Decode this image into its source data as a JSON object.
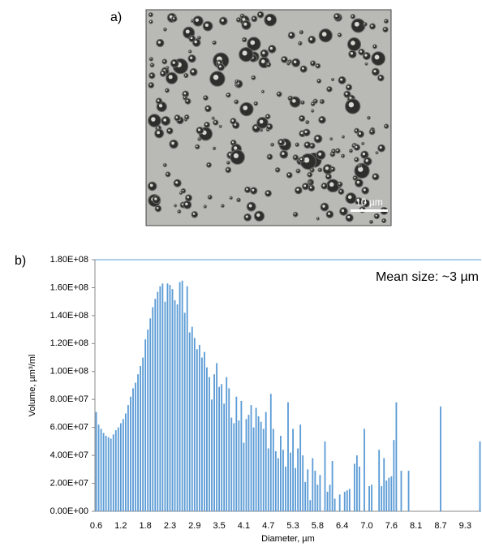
{
  "image": {
    "label": "a)",
    "scale_bar": "10 µm"
  },
  "chart_data": {
    "type": "bar",
    "panel_label": "b)",
    "annotation": "Mean size: ~3 µm",
    "x_label": "Diameter, µm",
    "y_label": "Volume, µm³/ml",
    "color": "#5b9bd5",
    "grid": false,
    "ylim": [
      0,
      180000000
    ],
    "yticks": [
      {
        "value": 0,
        "label": "0.00E+00"
      },
      {
        "value": 20000000,
        "label": "2.00E+07"
      },
      {
        "value": 40000000,
        "label": "4.00E+07"
      },
      {
        "value": 60000000,
        "label": "6.00E+07"
      },
      {
        "value": 80000000,
        "label": "8.00E+07"
      },
      {
        "value": 100000000,
        "label": "1.00E+08"
      },
      {
        "value": 120000000,
        "label": "1.20E+08"
      },
      {
        "value": 140000000,
        "label": "1.40E+08"
      },
      {
        "value": 160000000,
        "label": "1.60E+08"
      },
      {
        "value": 180000000,
        "label": "1.80E+08"
      }
    ],
    "categories": [
      "0.6",
      null,
      null,
      null,
      null,
      null,
      null,
      null,
      null,
      null,
      "1.2",
      null,
      null,
      null,
      null,
      null,
      null,
      null,
      null,
      null,
      "1.8",
      null,
      null,
      null,
      null,
      null,
      null,
      null,
      null,
      null,
      "2.3",
      null,
      null,
      null,
      null,
      null,
      null,
      null,
      null,
      null,
      "2.9",
      null,
      null,
      null,
      null,
      null,
      null,
      null,
      null,
      null,
      "3.5",
      null,
      null,
      null,
      null,
      null,
      null,
      null,
      null,
      null,
      "4.1",
      null,
      null,
      null,
      null,
      null,
      null,
      null,
      null,
      null,
      "4.7",
      null,
      null,
      null,
      null,
      null,
      null,
      null,
      null,
      null,
      "5.3",
      null,
      null,
      null,
      null,
      null,
      null,
      null,
      null,
      null,
      "5.8",
      null,
      null,
      null,
      null,
      null,
      null,
      null,
      null,
      null,
      "6.4",
      null,
      null,
      null,
      null,
      null,
      null,
      null,
      null,
      null,
      "7.0",
      null,
      null,
      null,
      null,
      null,
      null,
      null,
      null,
      null,
      "7.6",
      null,
      null,
      null,
      null,
      null,
      null,
      null,
      null,
      null,
      "8.1",
      null,
      null,
      null,
      null,
      null,
      null,
      null,
      null,
      null,
      "8.7",
      null,
      null,
      null,
      null,
      null,
      null,
      null,
      null,
      null,
      "9.3",
      null,
      null,
      null,
      null,
      null,
      null
    ],
    "values": [
      71000000.0,
      62000000.0,
      59000000.0,
      56000000.0,
      54000000.0,
      53000000.0,
      52000000.0,
      55000000.0,
      58000000.0,
      60000000.0,
      63000000.0,
      66000000.0,
      70000000.0,
      76000000.0,
      82000000.0,
      88000000.0,
      92000000.0,
      98000000.0,
      104000000.0,
      110000000.0,
      123000000.0,
      130000000.0,
      138000000.0,
      146000000.0,
      152000000.0,
      157000000.0,
      161000000.0,
      163000000.0,
      150000000.0,
      163000000.0,
      162000000.0,
      159000000.0,
      151000000.0,
      148000000.0,
      164000000.0,
      165000000.0,
      142000000.0,
      161000000.0,
      128000000.0,
      132000000.0,
      124000000.0,
      116000000.0,
      119000000.0,
      110000000.0,
      114000000.0,
      103000000.0,
      96000000.0,
      80000000.0,
      98000000.0,
      106000000.0,
      89000000.0,
      91000000.0,
      77000000.0,
      96000000.0,
      88000000.0,
      67000000.0,
      63000000.0,
      82000000.0,
      65000000.0,
      79000000.0,
      49000000.0,
      66000000.0,
      69000000.0,
      76000000.0,
      60000000.0,
      74000000.0,
      68000000.0,
      64000000.0,
      59000000.0,
      71000000.0,
      45000000.0,
      84000000.0,
      59000000.0,
      43000000.0,
      38000000.0,
      54000000.0,
      44000000.0,
      32000000.0,
      78000000.0,
      42000000.0,
      59000000.0,
      31000000.0,
      45000000.0,
      62000000.0,
      40000000.0,
      21000000.0,
      30000000.0,
      8000000.0,
      38000000.0,
      29000000.0,
      19000000.0,
      26000000.0,
      0,
      50000000.0,
      14000000.0,
      19000000.0,
      36000000.0,
      9000000.0,
      0,
      12000000.0,
      0,
      14000000.0,
      15000000.0,
      16000000.0,
      0,
      34000000.0,
      40000000.0,
      32000000.0,
      0,
      59000000.0,
      0,
      18000000.0,
      19000000.0,
      0,
      0,
      44000000.0,
      18000000.0,
      38000000.0,
      22000000.0,
      24000000.0,
      25000000.0,
      51000000.0,
      78000000.0,
      0,
      29000000.0,
      0,
      0,
      29000000.0,
      0,
      0,
      0,
      0,
      0,
      0,
      0,
      0,
      0,
      0,
      0,
      0,
      75000000.0,
      0,
      0,
      0,
      0,
      0,
      0,
      0,
      0,
      0,
      0,
      0,
      0,
      0,
      0,
      0,
      50000000.0
    ]
  }
}
